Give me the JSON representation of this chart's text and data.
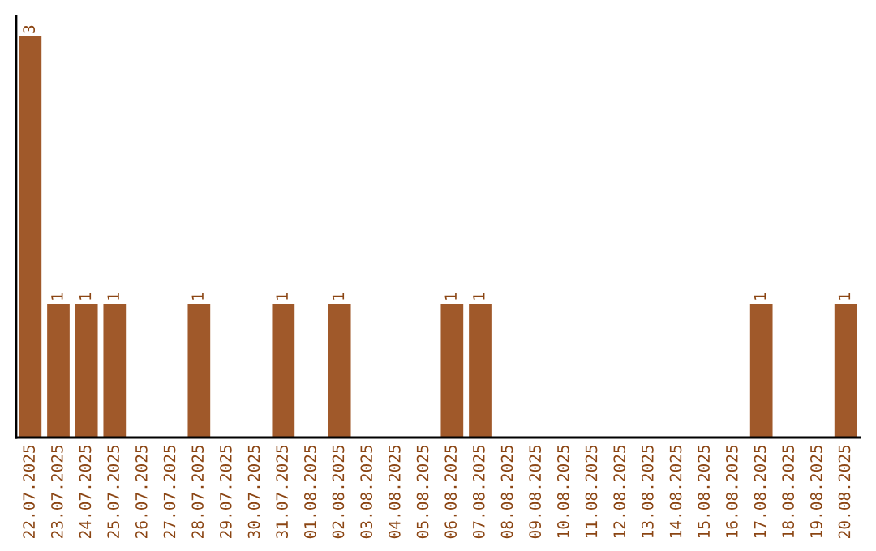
{
  "chart_data": {
    "type": "bar",
    "categories": [
      "22.07.2025",
      "23.07.2025",
      "24.07.2025",
      "25.07.2025",
      "26.07.2025",
      "27.07.2025",
      "28.07.2025",
      "29.07.2025",
      "30.07.2025",
      "31.07.2025",
      "01.08.2025",
      "02.08.2025",
      "03.08.2025",
      "04.08.2025",
      "05.08.2025",
      "06.08.2025",
      "07.08.2025",
      "08.08.2025",
      "09.08.2025",
      "10.08.2025",
      "11.08.2025",
      "12.08.2025",
      "13.08.2025",
      "14.08.2025",
      "15.08.2025",
      "16.08.2025",
      "17.08.2025",
      "18.08.2025",
      "19.08.2025",
      "20.08.2025"
    ],
    "values": [
      3,
      1,
      1,
      1,
      null,
      null,
      1,
      null,
      null,
      1,
      null,
      1,
      null,
      null,
      null,
      1,
      1,
      null,
      null,
      null,
      null,
      null,
      null,
      null,
      null,
      null,
      1,
      null,
      null,
      1
    ],
    "value_labels": [
      "3",
      "1",
      "1",
      "1",
      null,
      null,
      "1",
      null,
      null,
      "1",
      null,
      "1",
      null,
      null,
      null,
      "1",
      "1",
      null,
      null,
      null,
      null,
      null,
      null,
      null,
      null,
      null,
      "1",
      null,
      null,
      "1"
    ],
    "color": "#a0592a",
    "grid": false
  }
}
